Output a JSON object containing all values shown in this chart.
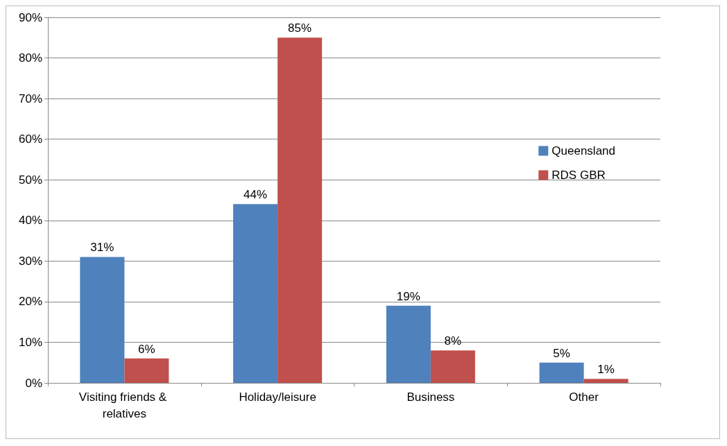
{
  "chart_data": {
    "type": "bar",
    "categories": [
      "Visiting friends & relatives",
      "Holiday/leisure",
      "Business",
      "Other"
    ],
    "series": [
      {
        "name": "Queensland",
        "color": "#4f81bd",
        "values": [
          31,
          44,
          19,
          5
        ],
        "value_labels": [
          "31%",
          "44%",
          "19%",
          "5%"
        ]
      },
      {
        "name": "RDS GBR",
        "color": "#c0504d",
        "values": [
          6,
          85,
          8,
          1
        ],
        "value_labels": [
          "6%",
          "85%",
          "8%",
          "1%"
        ]
      }
    ],
    "ylim": [
      0,
      90
    ],
    "yticks": [
      {
        "value": 0,
        "label": "0%"
      },
      {
        "value": 10,
        "label": "10%"
      },
      {
        "value": 20,
        "label": "20%"
      },
      {
        "value": 30,
        "label": "30%"
      },
      {
        "value": 40,
        "label": "40%"
      },
      {
        "value": 50,
        "label": "50%"
      },
      {
        "value": 60,
        "label": "60%"
      },
      {
        "value": 70,
        "label": "70%"
      },
      {
        "value": 80,
        "label": "80%"
      },
      {
        "value": 90,
        "label": "90%"
      }
    ],
    "grid": "y",
    "legend": "right"
  }
}
